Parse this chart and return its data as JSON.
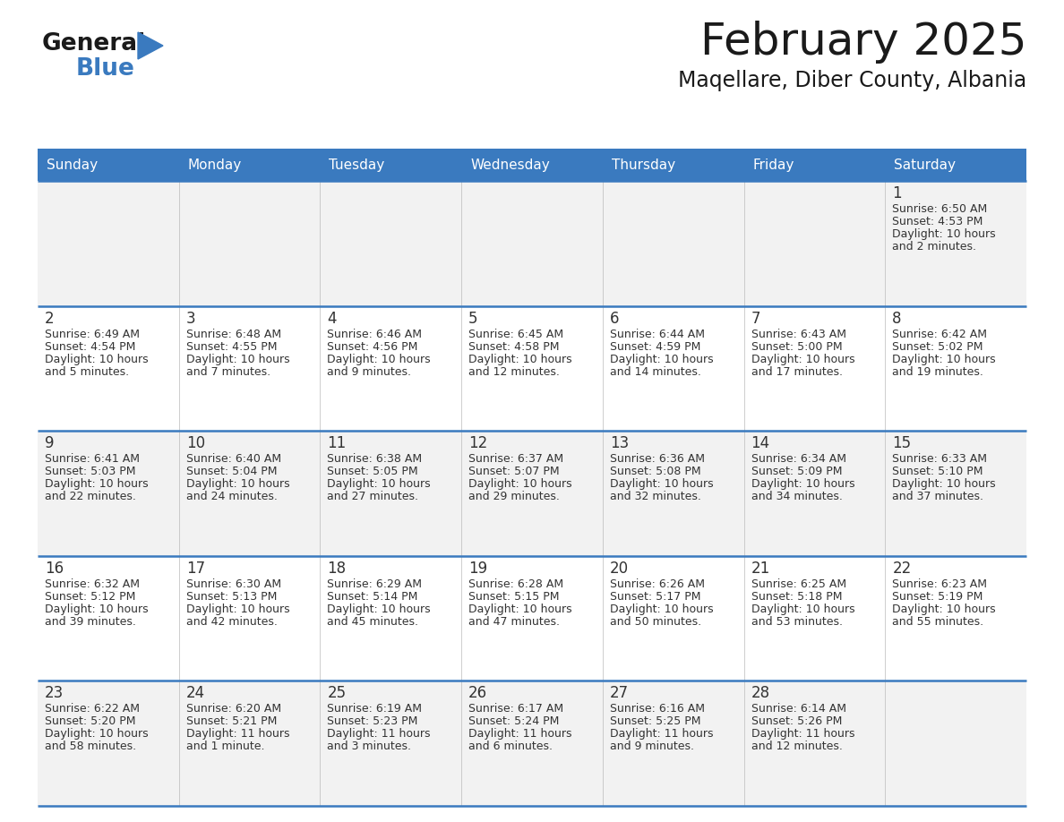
{
  "title": "February 2025",
  "subtitle": "Maqellare, Diber County, Albania",
  "header_color": "#3a7abf",
  "header_text_color": "#ffffff",
  "cell_bg_odd": "#f2f2f2",
  "cell_bg_even": "#ffffff",
  "border_color": "#3a7abf",
  "day_headers": [
    "Sunday",
    "Monday",
    "Tuesday",
    "Wednesday",
    "Thursday",
    "Friday",
    "Saturday"
  ],
  "days": [
    {
      "day": 1,
      "col": 6,
      "row": 0,
      "sunrise": "6:50 AM",
      "sunset": "4:53 PM",
      "daylight_hours": 10,
      "daylight_minutes": 2
    },
    {
      "day": 2,
      "col": 0,
      "row": 1,
      "sunrise": "6:49 AM",
      "sunset": "4:54 PM",
      "daylight_hours": 10,
      "daylight_minutes": 5
    },
    {
      "day": 3,
      "col": 1,
      "row": 1,
      "sunrise": "6:48 AM",
      "sunset": "4:55 PM",
      "daylight_hours": 10,
      "daylight_minutes": 7
    },
    {
      "day": 4,
      "col": 2,
      "row": 1,
      "sunrise": "6:46 AM",
      "sunset": "4:56 PM",
      "daylight_hours": 10,
      "daylight_minutes": 9
    },
    {
      "day": 5,
      "col": 3,
      "row": 1,
      "sunrise": "6:45 AM",
      "sunset": "4:58 PM",
      "daylight_hours": 10,
      "daylight_minutes": 12
    },
    {
      "day": 6,
      "col": 4,
      "row": 1,
      "sunrise": "6:44 AM",
      "sunset": "4:59 PM",
      "daylight_hours": 10,
      "daylight_minutes": 14
    },
    {
      "day": 7,
      "col": 5,
      "row": 1,
      "sunrise": "6:43 AM",
      "sunset": "5:00 PM",
      "daylight_hours": 10,
      "daylight_minutes": 17
    },
    {
      "day": 8,
      "col": 6,
      "row": 1,
      "sunrise": "6:42 AM",
      "sunset": "5:02 PM",
      "daylight_hours": 10,
      "daylight_minutes": 19
    },
    {
      "day": 9,
      "col": 0,
      "row": 2,
      "sunrise": "6:41 AM",
      "sunset": "5:03 PM",
      "daylight_hours": 10,
      "daylight_minutes": 22
    },
    {
      "day": 10,
      "col": 1,
      "row": 2,
      "sunrise": "6:40 AM",
      "sunset": "5:04 PM",
      "daylight_hours": 10,
      "daylight_minutes": 24
    },
    {
      "day": 11,
      "col": 2,
      "row": 2,
      "sunrise": "6:38 AM",
      "sunset": "5:05 PM",
      "daylight_hours": 10,
      "daylight_minutes": 27
    },
    {
      "day": 12,
      "col": 3,
      "row": 2,
      "sunrise": "6:37 AM",
      "sunset": "5:07 PM",
      "daylight_hours": 10,
      "daylight_minutes": 29
    },
    {
      "day": 13,
      "col": 4,
      "row": 2,
      "sunrise": "6:36 AM",
      "sunset": "5:08 PM",
      "daylight_hours": 10,
      "daylight_minutes": 32
    },
    {
      "day": 14,
      "col": 5,
      "row": 2,
      "sunrise": "6:34 AM",
      "sunset": "5:09 PM",
      "daylight_hours": 10,
      "daylight_minutes": 34
    },
    {
      "day": 15,
      "col": 6,
      "row": 2,
      "sunrise": "6:33 AM",
      "sunset": "5:10 PM",
      "daylight_hours": 10,
      "daylight_minutes": 37
    },
    {
      "day": 16,
      "col": 0,
      "row": 3,
      "sunrise": "6:32 AM",
      "sunset": "5:12 PM",
      "daylight_hours": 10,
      "daylight_minutes": 39
    },
    {
      "day": 17,
      "col": 1,
      "row": 3,
      "sunrise": "6:30 AM",
      "sunset": "5:13 PM",
      "daylight_hours": 10,
      "daylight_minutes": 42
    },
    {
      "day": 18,
      "col": 2,
      "row": 3,
      "sunrise": "6:29 AM",
      "sunset": "5:14 PM",
      "daylight_hours": 10,
      "daylight_minutes": 45
    },
    {
      "day": 19,
      "col": 3,
      "row": 3,
      "sunrise": "6:28 AM",
      "sunset": "5:15 PM",
      "daylight_hours": 10,
      "daylight_minutes": 47
    },
    {
      "day": 20,
      "col": 4,
      "row": 3,
      "sunrise": "6:26 AM",
      "sunset": "5:17 PM",
      "daylight_hours": 10,
      "daylight_minutes": 50
    },
    {
      "day": 21,
      "col": 5,
      "row": 3,
      "sunrise": "6:25 AM",
      "sunset": "5:18 PM",
      "daylight_hours": 10,
      "daylight_minutes": 53
    },
    {
      "day": 22,
      "col": 6,
      "row": 3,
      "sunrise": "6:23 AM",
      "sunset": "5:19 PM",
      "daylight_hours": 10,
      "daylight_minutes": 55
    },
    {
      "day": 23,
      "col": 0,
      "row": 4,
      "sunrise": "6:22 AM",
      "sunset": "5:20 PM",
      "daylight_hours": 10,
      "daylight_minutes": 58
    },
    {
      "day": 24,
      "col": 1,
      "row": 4,
      "sunrise": "6:20 AM",
      "sunset": "5:21 PM",
      "daylight_hours": 11,
      "daylight_minutes": 1
    },
    {
      "day": 25,
      "col": 2,
      "row": 4,
      "sunrise": "6:19 AM",
      "sunset": "5:23 PM",
      "daylight_hours": 11,
      "daylight_minutes": 3
    },
    {
      "day": 26,
      "col": 3,
      "row": 4,
      "sunrise": "6:17 AM",
      "sunset": "5:24 PM",
      "daylight_hours": 11,
      "daylight_minutes": 6
    },
    {
      "day": 27,
      "col": 4,
      "row": 4,
      "sunrise": "6:16 AM",
      "sunset": "5:25 PM",
      "daylight_hours": 11,
      "daylight_minutes": 9
    },
    {
      "day": 28,
      "col": 5,
      "row": 4,
      "sunrise": "6:14 AM",
      "sunset": "5:26 PM",
      "daylight_hours": 11,
      "daylight_minutes": 12
    }
  ],
  "num_rows": 5,
  "num_cols": 7
}
